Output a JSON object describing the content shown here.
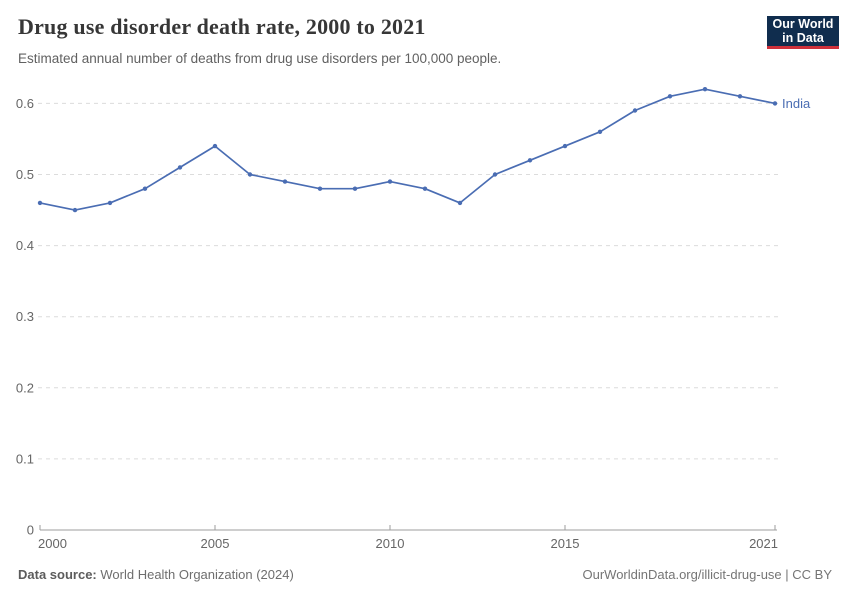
{
  "header": {
    "title": "Drug use disorder death rate, 2000 to 2021",
    "subtitle": "Estimated annual number of deaths from drug use disorders per 100,000 people.",
    "logo": {
      "line1": "Our World",
      "line2": "in Data",
      "bg_color": "#102d4e",
      "accent_color": "#cf303a"
    }
  },
  "chart_data": {
    "type": "line",
    "title": "Drug use disorder death rate, 2000 to 2021",
    "x": [
      2000,
      2001,
      2002,
      2003,
      2004,
      2005,
      2006,
      2007,
      2008,
      2009,
      2010,
      2011,
      2012,
      2013,
      2014,
      2015,
      2016,
      2017,
      2018,
      2019,
      2020,
      2021
    ],
    "series": [
      {
        "name": "India",
        "color": "#4a6db3",
        "values": [
          0.46,
          0.45,
          0.46,
          0.48,
          0.51,
          0.54,
          0.5,
          0.49,
          0.48,
          0.48,
          0.49,
          0.48,
          0.46,
          0.5,
          0.52,
          0.54,
          0.56,
          0.59,
          0.61,
          0.62,
          0.61,
          0.6
        ]
      }
    ],
    "xlabel": "",
    "ylabel": "",
    "xlim": [
      2000,
      2021
    ],
    "ylim": [
      0,
      0.6
    ],
    "xticks": {
      "values": [
        2000,
        2005,
        2010,
        2015,
        2021
      ],
      "labels": [
        "2000",
        "2005",
        "2010",
        "2015",
        "2021"
      ]
    },
    "yticks": {
      "values": [
        0,
        0.1,
        0.2,
        0.3,
        0.4,
        0.5,
        0.6
      ],
      "labels": [
        "0",
        "0.1",
        "0.2",
        "0.3",
        "0.4",
        "0.5",
        "0.6"
      ]
    },
    "grid": "horizontal-dashed",
    "grid_color": "#dcdcdc",
    "axis_color": "#9e9e9e",
    "legend_position": "end-of-line-label"
  },
  "footer": {
    "datasource_label": "Data source:",
    "datasource_value": "World Health Organization (2024)",
    "license": "OurWorldinData.org/illicit-drug-use | CC BY"
  }
}
